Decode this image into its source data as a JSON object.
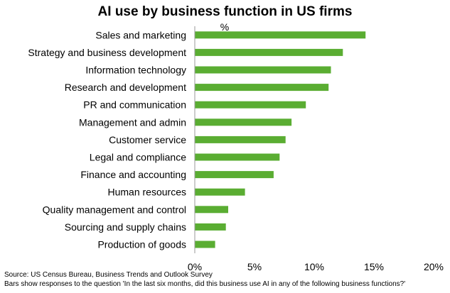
{
  "chart_data": {
    "type": "bar",
    "orientation": "horizontal",
    "title": "AI use by business function in US firms",
    "unit_label": "%",
    "categories": [
      "Sales and marketing",
      "Strategy and business development",
      "Information technology",
      "Research and development",
      "PR and communication",
      "Management and admin",
      "Customer service",
      "Legal and compliance",
      "Finance and accounting",
      "Human resources",
      "Quality management and control",
      "Sourcing and supply chains",
      "Production of goods"
    ],
    "values": [
      14.3,
      12.4,
      11.4,
      11.2,
      9.3,
      8.1,
      7.6,
      7.1,
      6.6,
      4.2,
      2.8,
      2.6,
      1.7
    ],
    "xlim": [
      0,
      20
    ],
    "x_ticks": [
      0,
      5,
      10,
      15,
      20
    ],
    "x_tick_labels": [
      "0%",
      "5%",
      "10%",
      "15%",
      "20%"
    ],
    "grid": false,
    "bar_color": "#5aad32",
    "axis_color": "#999999"
  },
  "notes": {
    "source": "Source: US Census Bureau, Business Trends and Outlook Survey",
    "question": "Bars show responses to the question 'In the last six months, did this business use AI in any of the following business functions?'"
  }
}
